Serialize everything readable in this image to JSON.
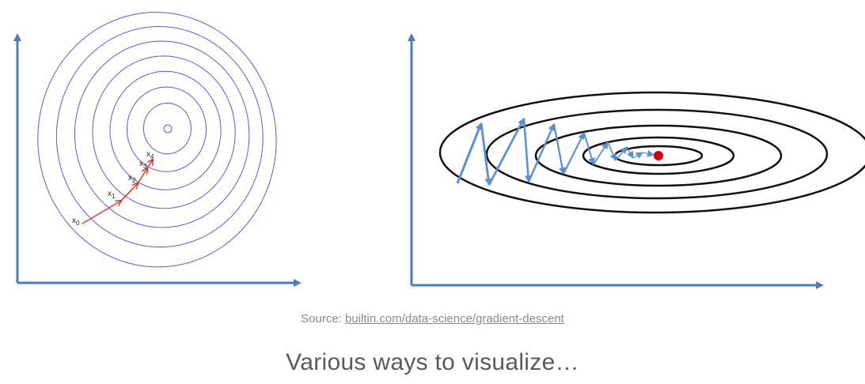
{
  "left_panel": {
    "iterate_labels": [
      {
        "base": "x",
        "sub": "0"
      },
      {
        "base": "x",
        "sub": "1"
      },
      {
        "base": "x",
        "sub": "2"
      },
      {
        "base": "x",
        "sub": "3"
      },
      {
        "base": "x",
        "sub": "4"
      }
    ]
  },
  "source": {
    "prefix": "Source: ",
    "link_text": "builtin.com/data-science/gradient-descent"
  },
  "caption": "Various ways to visualize…",
  "colors": {
    "axis": "#4a7ebb",
    "contour_left": "#5b5bd6",
    "path_left": "#e02020",
    "contour_right": "#111111",
    "zigzag": "#5a8fd6",
    "minimum_dot": "#d40000",
    "text_gray": "#8a8a8a",
    "caption": "#5a5a5a"
  }
}
